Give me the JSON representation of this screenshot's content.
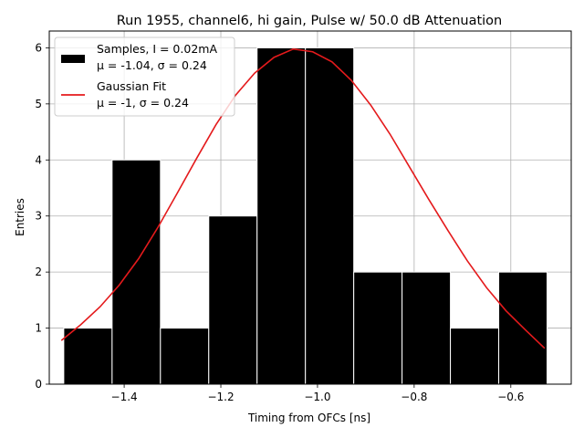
{
  "chart_data": {
    "type": "bar",
    "title": "Run 1955, channel6, hi gain, Pulse w/ 50.0 dB Attenuation",
    "xlabel": "Timing from OFCs [ns]",
    "ylabel": "Entries",
    "xlim": [
      -1.555,
      -0.475
    ],
    "ylim": [
      0,
      6.3
    ],
    "xticks": [
      -1.4,
      -1.2,
      -1.0,
      -0.8,
      -0.6
    ],
    "xtick_labels": [
      "−1.4",
      "−1.2",
      "−1.0",
      "−0.8",
      "−0.6"
    ],
    "yticks": [
      0,
      1,
      2,
      3,
      4,
      5,
      6
    ],
    "ytick_labels": [
      "0",
      "1",
      "2",
      "3",
      "4",
      "5",
      "6"
    ],
    "grid": true,
    "legend_position": "top-left",
    "histogram": {
      "name": "Samples, I = 0.02mA",
      "stats_label": "μ = -1.04, σ = 0.24",
      "color": "#000000",
      "edge_color": "#ffffff",
      "bin_edges": [
        -1.525,
        -1.425,
        -1.325,
        -1.225,
        -1.125,
        -1.025,
        -0.925,
        -0.825,
        -0.725,
        -0.625,
        -0.525
      ],
      "counts": [
        1,
        4,
        1,
        3,
        6,
        6,
        2,
        2,
        1,
        2
      ]
    },
    "fit": {
      "name": "Gaussian Fit",
      "stats_label": "μ = -1, σ = 0.24",
      "color": "#e41a1c",
      "x": [
        -1.53,
        -1.49,
        -1.45,
        -1.41,
        -1.37,
        -1.33,
        -1.29,
        -1.25,
        -1.21,
        -1.17,
        -1.13,
        -1.09,
        -1.05,
        -1.01,
        -0.97,
        -0.93,
        -0.89,
        -0.85,
        -0.81,
        -0.77,
        -0.73,
        -0.69,
        -0.65,
        -0.61,
        -0.57,
        -0.53
      ],
      "y": [
        0.78,
        1.06,
        1.38,
        1.77,
        2.24,
        2.8,
        3.41,
        4.03,
        4.63,
        5.15,
        5.55,
        5.83,
        5.98,
        5.93,
        5.75,
        5.42,
        4.98,
        4.46,
        3.88,
        3.3,
        2.74,
        2.2,
        1.72,
        1.31,
        0.97,
        0.64
      ]
    }
  }
}
